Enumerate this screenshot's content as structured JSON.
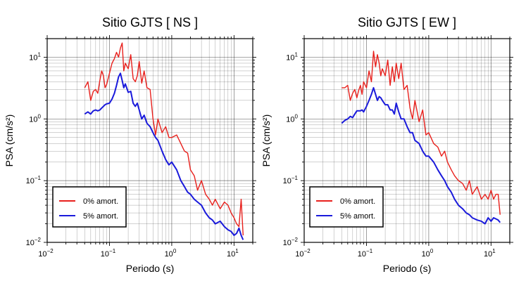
{
  "chart_data": [
    {
      "type": "line",
      "title": "Sitio GJTS [ NS ]",
      "xlabel": "Periodo (s)",
      "ylabel": "PSA (cm/s²)",
      "xscale": "log",
      "yscale": "log",
      "xlim": [
        0.01,
        20
      ],
      "ylim": [
        0.01,
        20
      ],
      "grid": true,
      "legend_position": "bottom-left",
      "x_ticks": [
        {
          "base": "10",
          "exp": "−2"
        },
        {
          "base": "10",
          "exp": "−1"
        },
        {
          "base": "10",
          "exp": "0"
        },
        {
          "base": "10",
          "exp": "1"
        }
      ],
      "y_ticks": [
        {
          "base": "10",
          "exp": "−2"
        },
        {
          "base": "10",
          "exp": "−1"
        },
        {
          "base": "10",
          "exp": "0"
        },
        {
          "base": "10",
          "exp": "1"
        }
      ],
      "x": [
        0.04,
        0.045,
        0.05,
        0.055,
        0.06,
        0.065,
        0.07,
        0.075,
        0.08,
        0.085,
        0.09,
        0.1,
        0.11,
        0.12,
        0.13,
        0.14,
        0.15,
        0.16,
        0.17,
        0.18,
        0.2,
        0.22,
        0.24,
        0.26,
        0.28,
        0.3,
        0.33,
        0.36,
        0.4,
        0.45,
        0.5,
        0.55,
        0.6,
        0.7,
        0.8,
        0.9,
        1.0,
        1.2,
        1.4,
        1.6,
        1.8,
        2.0,
        2.3,
        2.6,
        3.0,
        3.5,
        4.0,
        4.5,
        5.0,
        6.0,
        7.0,
        8.0,
        9.0,
        10.0,
        11.0,
        12.0,
        13.0,
        14.0
      ],
      "series": [
        {
          "name": "0% amort.",
          "color": "#e8201c",
          "values": [
            3.2,
            4.0,
            2.0,
            2.8,
            3.0,
            2.6,
            4.2,
            6.0,
            5.0,
            3.2,
            3.6,
            5.5,
            8.0,
            9.5,
            12.0,
            10.0,
            14.0,
            17.0,
            6.0,
            8.0,
            6.5,
            11.0,
            4.5,
            4.0,
            5.0,
            8.5,
            3.8,
            6.0,
            3.2,
            3.0,
            1.0,
            0.55,
            1.0,
            0.6,
            0.75,
            0.5,
            0.5,
            0.55,
            0.4,
            0.3,
            0.28,
            0.15,
            0.12,
            0.07,
            0.1,
            0.06,
            0.05,
            0.04,
            0.05,
            0.035,
            0.045,
            0.04,
            0.03,
            0.025,
            0.02,
            0.018,
            0.05,
            0.013
          ]
        },
        {
          "name": "5% amort.",
          "color": "#1a1adb",
          "values": [
            1.2,
            1.3,
            1.2,
            1.35,
            1.4,
            1.35,
            1.4,
            1.5,
            1.6,
            1.7,
            1.75,
            1.8,
            2.1,
            2.6,
            3.5,
            4.8,
            5.5,
            4.2,
            3.2,
            3.7,
            2.7,
            2.8,
            1.8,
            1.6,
            1.8,
            1.4,
            1.0,
            1.15,
            0.85,
            0.75,
            0.6,
            0.5,
            0.45,
            0.3,
            0.22,
            0.18,
            0.2,
            0.15,
            0.1,
            0.08,
            0.065,
            0.06,
            0.05,
            0.045,
            0.04,
            0.03,
            0.025,
            0.023,
            0.02,
            0.022,
            0.018,
            0.016,
            0.015,
            0.013,
            0.014,
            0.017,
            0.013,
            0.011
          ]
        }
      ]
    },
    {
      "type": "line",
      "title": "Sitio GJTS [ EW ]",
      "xlabel": "Periodo (s)",
      "ylabel": "PSA (cm/s²)",
      "xscale": "log",
      "yscale": "log",
      "xlim": [
        0.01,
        20
      ],
      "ylim": [
        0.01,
        20
      ],
      "grid": true,
      "legend_position": "bottom-left",
      "x_ticks": [
        {
          "base": "10",
          "exp": "−2"
        },
        {
          "base": "10",
          "exp": "−1"
        },
        {
          "base": "10",
          "exp": "0"
        },
        {
          "base": "10",
          "exp": "1"
        }
      ],
      "y_ticks": [
        {
          "base": "10",
          "exp": "−2"
        },
        {
          "base": "10",
          "exp": "−1"
        },
        {
          "base": "10",
          "exp": "0"
        },
        {
          "base": "10",
          "exp": "1"
        }
      ],
      "x": [
        0.04,
        0.045,
        0.05,
        0.055,
        0.06,
        0.065,
        0.07,
        0.075,
        0.08,
        0.085,
        0.09,
        0.1,
        0.11,
        0.12,
        0.13,
        0.14,
        0.15,
        0.16,
        0.17,
        0.18,
        0.2,
        0.22,
        0.24,
        0.26,
        0.28,
        0.3,
        0.33,
        0.36,
        0.4,
        0.45,
        0.5,
        0.55,
        0.6,
        0.7,
        0.8,
        0.9,
        1.0,
        1.2,
        1.4,
        1.6,
        1.8,
        2.0,
        2.3,
        2.6,
        3.0,
        3.5,
        4.0,
        4.5,
        5.0,
        6.0,
        7.0,
        8.0,
        9.0,
        10.0,
        11.0,
        12.0,
        13.0,
        14.0
      ],
      "series": [
        {
          "name": "0% amort.",
          "color": "#e8201c",
          "values": [
            3.2,
            3.2,
            3.5,
            2.0,
            2.6,
            3.0,
            2.2,
            2.9,
            3.5,
            2.5,
            4.0,
            3.2,
            6.0,
            4.0,
            12.5,
            7.0,
            11.0,
            8.0,
            5.0,
            6.5,
            5.0,
            9.0,
            3.5,
            7.0,
            4.0,
            8.0,
            4.5,
            8.0,
            3.0,
            3.5,
            1.5,
            1.0,
            2.0,
            0.9,
            1.4,
            0.55,
            0.6,
            0.4,
            0.35,
            0.25,
            0.3,
            0.2,
            0.15,
            0.12,
            0.1,
            0.09,
            0.07,
            0.1,
            0.06,
            0.08,
            0.05,
            0.06,
            0.05,
            0.07,
            0.05,
            0.06,
            0.06,
            0.028
          ]
        },
        {
          "name": "5% amort.",
          "color": "#1a1adb",
          "values": [
            0.85,
            0.95,
            1.0,
            1.1,
            1.05,
            1.2,
            1.35,
            1.35,
            1.35,
            1.4,
            1.3,
            1.6,
            2.0,
            2.5,
            3.2,
            2.5,
            2.0,
            2.3,
            2.2,
            2.0,
            1.7,
            1.7,
            1.4,
            1.4,
            1.2,
            1.8,
            1.3,
            1.0,
            1.0,
            0.75,
            0.6,
            0.6,
            0.45,
            0.4,
            0.3,
            0.25,
            0.25,
            0.2,
            0.15,
            0.12,
            0.1,
            0.08,
            0.065,
            0.05,
            0.04,
            0.035,
            0.03,
            0.028,
            0.025,
            0.023,
            0.022,
            0.02,
            0.025,
            0.022,
            0.025,
            0.024,
            0.023,
            0.021
          ]
        }
      ]
    }
  ]
}
